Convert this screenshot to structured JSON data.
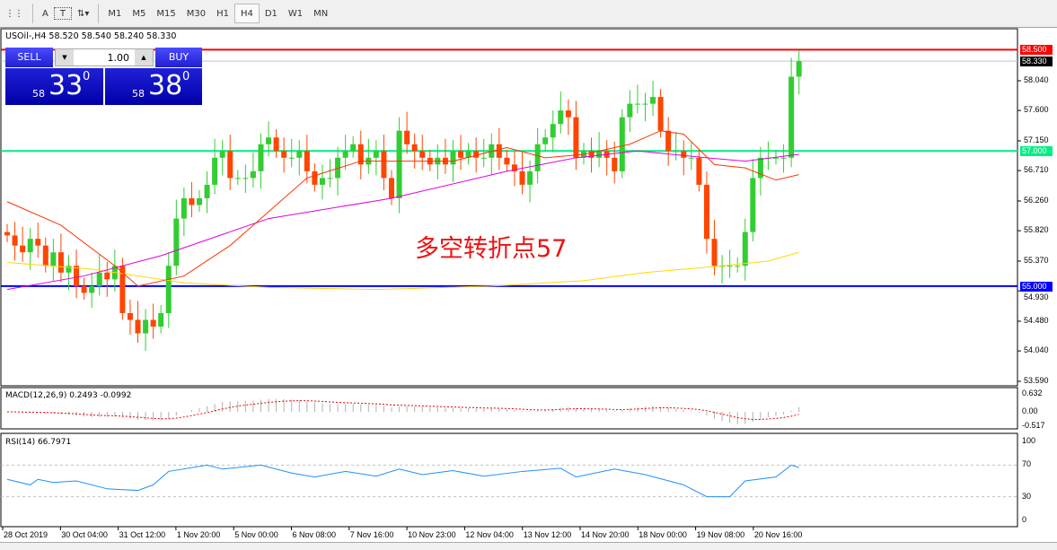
{
  "toolbar": {
    "timeframes": [
      "M1",
      "M5",
      "M15",
      "M30",
      "H1",
      "H4",
      "D1",
      "W1",
      "MN"
    ],
    "active": "H4",
    "tools": [
      "A",
      "T"
    ]
  },
  "chart_header": "USOil-,H4  58.520 58.540 58.240 58.330",
  "trade_panel": {
    "sell_label": "SELL",
    "buy_label": "BUY",
    "lot": "1.00",
    "sell_big": "58",
    "sell_main": "33",
    "sell_sup": "0",
    "buy_big": "58",
    "buy_main": "38",
    "buy_sup": "0"
  },
  "annotation": "多空转折点57",
  "chart_data": {
    "type": "candlestick",
    "symbol": "USOil-",
    "timeframe": "H4",
    "colors": {
      "up": "#32cd32",
      "down": "#ff4500",
      "ma_fast": "#ff3300",
      "ma_mid": "#e000e0",
      "ma_slow": "#ffd700"
    },
    "closes": [
      55.75,
      55.6,
      55.5,
      55.7,
      55.6,
      55.3,
      55.5,
      55.2,
      55.3,
      55.0,
      54.9,
      55.0,
      55.2,
      55.1,
      55.3,
      54.6,
      54.5,
      54.3,
      54.5,
      54.4,
      54.6,
      55.3,
      56.0,
      56.3,
      56.2,
      56.3,
      56.5,
      56.9,
      57.0,
      56.6,
      56.6,
      56.6,
      56.7,
      57.1,
      57.2,
      57.0,
      56.9,
      56.9,
      57.0,
      56.7,
      56.5,
      56.6,
      56.6,
      56.9,
      57.0,
      57.1,
      56.8,
      56.9,
      57.0,
      56.6,
      56.3,
      57.3,
      57.1,
      57.0,
      56.9,
      56.8,
      56.9,
      56.8,
      57.0,
      56.9,
      57.0,
      56.9,
      56.9,
      57.1,
      56.9,
      56.8,
      56.7,
      56.5,
      56.7,
      57.1,
      57.2,
      57.4,
      57.6,
      57.5,
      56.9,
      57.0,
      56.9,
      57.0,
      56.9,
      56.7,
      57.5,
      57.7,
      57.7,
      57.7,
      57.8,
      57.3,
      57.0,
      57.0,
      56.9,
      56.9,
      56.5,
      55.7,
      55.3,
      55.3,
      55.3,
      55.3,
      55.8,
      56.6,
      56.9,
      56.9,
      56.9,
      56.9,
      58.1,
      58.33
    ],
    "ma_fast": [
      [
        0,
        56.25
      ],
      [
        7,
        55.9
      ],
      [
        14,
        55.3
      ],
      [
        17,
        55.0
      ],
      [
        23,
        55.15
      ],
      [
        29,
        55.6
      ],
      [
        34,
        56.1
      ],
      [
        39,
        56.6
      ],
      [
        46,
        56.85
      ],
      [
        51,
        56.85
      ],
      [
        58,
        56.85
      ],
      [
        65,
        57.05
      ],
      [
        70,
        56.9
      ],
      [
        75,
        56.95
      ],
      [
        81,
        57.1
      ],
      [
        85,
        57.3
      ],
      [
        88,
        57.25
      ],
      [
        92,
        56.8
      ],
      [
        96,
        56.75
      ],
      [
        100,
        56.57
      ],
      [
        103,
        56.65
      ]
    ],
    "ma_mid": [
      [
        0,
        54.95
      ],
      [
        10,
        55.15
      ],
      [
        20,
        55.45
      ],
      [
        34,
        56.0
      ],
      [
        50,
        56.3
      ],
      [
        65,
        56.7
      ],
      [
        74,
        56.9
      ],
      [
        82,
        57.0
      ],
      [
        91,
        56.9
      ],
      [
        96,
        56.85
      ],
      [
        103,
        56.95
      ]
    ],
    "ma_slow": [
      [
        0,
        55.35
      ],
      [
        11,
        55.25
      ],
      [
        23,
        55.05
      ],
      [
        34,
        54.98
      ],
      [
        48,
        54.95
      ],
      [
        63,
        55.0
      ],
      [
        75,
        55.08
      ],
      [
        83,
        55.2
      ],
      [
        93,
        55.3
      ],
      [
        99,
        55.37
      ],
      [
        103,
        55.5
      ]
    ],
    "hlines": [
      {
        "value": "58.500",
        "color": "#ff0000"
      },
      {
        "value": "57.000",
        "color": "#00ee80"
      },
      {
        "value": "55.000",
        "color": "#0000ff"
      }
    ],
    "current_price": "58.330",
    "y_ticks": [
      "58.040",
      "57.600",
      "57.150",
      "56.710",
      "56.260",
      "55.820",
      "55.370",
      "54.930",
      "54.480",
      "54.040",
      "53.590"
    ],
    "ylim": [
      53.59,
      58.04
    ],
    "x_ticks": [
      "28 Oct 2019",
      "30 Oct 04:00",
      "31 Oct 12:00",
      "1 Nov 20:00",
      "5 Nov 00:00",
      "6 Nov 08:00",
      "7 Nov 16:00",
      "10 Nov 23:00",
      "12 Nov 04:00",
      "13 Nov 12:00",
      "14 Nov 20:00",
      "18 Nov 00:00",
      "19 Nov 08:00",
      "20 Nov 16:00"
    ],
    "macd": {
      "label": "MACD(12,26,9) 0.2493 -0.0992",
      "ticks": [
        "0.632",
        "0.00",
        "-0.517"
      ]
    },
    "rsi": {
      "label": "RSI(14) 66.7971",
      "ticks": [
        "100",
        "70",
        "30",
        "0"
      ],
      "levels": [
        70,
        30
      ],
      "points": [
        [
          0,
          52
        ],
        [
          3,
          45
        ],
        [
          4,
          52
        ],
        [
          6,
          48
        ],
        [
          9,
          50
        ],
        [
          13,
          40
        ],
        [
          17,
          38
        ],
        [
          19,
          45
        ],
        [
          21,
          62
        ],
        [
          26,
          70
        ],
        [
          28,
          65
        ],
        [
          33,
          70
        ],
        [
          37,
          60
        ],
        [
          40,
          55
        ],
        [
          44,
          62
        ],
        [
          48,
          56
        ],
        [
          51,
          65
        ],
        [
          54,
          58
        ],
        [
          58,
          63
        ],
        [
          62,
          56
        ],
        [
          67,
          62
        ],
        [
          72,
          66
        ],
        [
          74,
          55
        ],
        [
          79,
          65
        ],
        [
          83,
          58
        ],
        [
          88,
          45
        ],
        [
          91,
          30
        ],
        [
          94,
          30
        ],
        [
          96,
          50
        ],
        [
          100,
          55
        ],
        [
          102,
          70
        ],
        [
          103,
          67
        ]
      ]
    }
  }
}
